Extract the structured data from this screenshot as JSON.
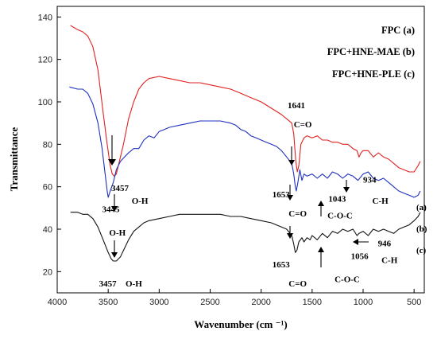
{
  "chart_data": {
    "type": "line",
    "xlabel": "Wavenumber (cm ⁻¹)",
    "ylabel": "Transmittance",
    "xlim": [
      4000,
      400
    ],
    "ylim": [
      10,
      145
    ],
    "xticks": [
      4000,
      3500,
      3000,
      2500,
      2000,
      1500,
      1000,
      500
    ],
    "yticks": [
      20,
      40,
      60,
      80,
      100,
      120,
      140
    ],
    "grid": false,
    "legend": {
      "placement": "top-right",
      "entries": [
        "FPC (a)",
        "FPC+HNE-MAE (b)",
        "FPC+HNE-PLE  (c)"
      ]
    },
    "series": [
      {
        "tag": "(a)",
        "color": "#e02020",
        "points": [
          [
            3870,
            136
          ],
          [
            3800,
            134
          ],
          [
            3750,
            133
          ],
          [
            3700,
            131
          ],
          [
            3650,
            126
          ],
          [
            3600,
            115
          ],
          [
            3550,
            95
          ],
          [
            3510,
            80
          ],
          [
            3480,
            70
          ],
          [
            3460,
            66
          ],
          [
            3440,
            65
          ],
          [
            3420,
            66
          ],
          [
            3400,
            70
          ],
          [
            3350,
            80
          ],
          [
            3300,
            92
          ],
          [
            3250,
            100
          ],
          [
            3200,
            106
          ],
          [
            3150,
            109
          ],
          [
            3100,
            111
          ],
          [
            3000,
            112
          ],
          [
            2900,
            111
          ],
          [
            2800,
            110
          ],
          [
            2700,
            109
          ],
          [
            2600,
            109
          ],
          [
            2500,
            108
          ],
          [
            2400,
            107
          ],
          [
            2300,
            106
          ],
          [
            2200,
            104
          ],
          [
            2100,
            102
          ],
          [
            2000,
            100
          ],
          [
            1900,
            97
          ],
          [
            1800,
            94
          ],
          [
            1750,
            92
          ],
          [
            1700,
            90
          ],
          [
            1680,
            85
          ],
          [
            1660,
            72
          ],
          [
            1645,
            67
          ],
          [
            1630,
            70
          ],
          [
            1610,
            80
          ],
          [
            1580,
            83
          ],
          [
            1550,
            84
          ],
          [
            1500,
            83
          ],
          [
            1450,
            84
          ],
          [
            1400,
            82
          ],
          [
            1350,
            82
          ],
          [
            1300,
            81
          ],
          [
            1250,
            81
          ],
          [
            1200,
            80
          ],
          [
            1150,
            80
          ],
          [
            1100,
            78
          ],
          [
            1060,
            77
          ],
          [
            1040,
            74
          ],
          [
            1020,
            76
          ],
          [
            1000,
            77
          ],
          [
            950,
            77
          ],
          [
            900,
            74
          ],
          [
            850,
            76
          ],
          [
            800,
            74
          ],
          [
            750,
            73
          ],
          [
            700,
            71
          ],
          [
            650,
            69
          ],
          [
            600,
            68
          ],
          [
            550,
            67
          ],
          [
            500,
            67
          ],
          [
            460,
            70
          ],
          [
            440,
            72
          ]
        ]
      },
      {
        "tag": "(b)",
        "color": "#1c2fc0",
        "points": [
          [
            3880,
            107
          ],
          [
            3800,
            106
          ],
          [
            3750,
            106
          ],
          [
            3700,
            104
          ],
          [
            3650,
            99
          ],
          [
            3600,
            90
          ],
          [
            3560,
            78
          ],
          [
            3530,
            66
          ],
          [
            3510,
            58
          ],
          [
            3500,
            55
          ],
          [
            3480,
            58
          ],
          [
            3450,
            62
          ],
          [
            3420,
            68
          ],
          [
            3380,
            72
          ],
          [
            3340,
            74
          ],
          [
            3300,
            76
          ],
          [
            3250,
            78
          ],
          [
            3200,
            78
          ],
          [
            3150,
            82
          ],
          [
            3100,
            84
          ],
          [
            3050,
            83
          ],
          [
            3000,
            86
          ],
          [
            2950,
            87
          ],
          [
            2900,
            88
          ],
          [
            2800,
            89
          ],
          [
            2700,
            90
          ],
          [
            2600,
            91
          ],
          [
            2500,
            91
          ],
          [
            2400,
            91
          ],
          [
            2300,
            90
          ],
          [
            2250,
            89
          ],
          [
            2200,
            87
          ],
          [
            2150,
            86
          ],
          [
            2100,
            84
          ],
          [
            2050,
            83
          ],
          [
            2000,
            82
          ],
          [
            1950,
            81
          ],
          [
            1900,
            80
          ],
          [
            1850,
            79
          ],
          [
            1800,
            77
          ],
          [
            1750,
            74
          ],
          [
            1700,
            71
          ],
          [
            1680,
            66
          ],
          [
            1665,
            60
          ],
          [
            1655,
            58
          ],
          [
            1640,
            62
          ],
          [
            1620,
            68
          ],
          [
            1600,
            63
          ],
          [
            1580,
            66
          ],
          [
            1550,
            65
          ],
          [
            1500,
            66
          ],
          [
            1450,
            64
          ],
          [
            1400,
            66
          ],
          [
            1350,
            64
          ],
          [
            1300,
            67
          ],
          [
            1250,
            66
          ],
          [
            1200,
            64
          ],
          [
            1150,
            66
          ],
          [
            1100,
            65
          ],
          [
            1050,
            63
          ],
          [
            1000,
            66
          ],
          [
            950,
            67
          ],
          [
            900,
            64
          ],
          [
            850,
            63
          ],
          [
            800,
            64
          ],
          [
            750,
            62
          ],
          [
            700,
            60
          ],
          [
            650,
            58
          ],
          [
            600,
            57
          ],
          [
            550,
            56
          ],
          [
            500,
            55
          ],
          [
            460,
            56
          ],
          [
            440,
            58
          ]
        ]
      },
      {
        "tag": "(c)",
        "color": "#111111",
        "points": [
          [
            3870,
            48
          ],
          [
            3800,
            48
          ],
          [
            3750,
            47
          ],
          [
            3700,
            47
          ],
          [
            3650,
            45
          ],
          [
            3600,
            41
          ],
          [
            3550,
            35
          ],
          [
            3500,
            29
          ],
          [
            3470,
            26
          ],
          [
            3450,
            25
          ],
          [
            3420,
            25
          ],
          [
            3380,
            27
          ],
          [
            3340,
            31
          ],
          [
            3300,
            35
          ],
          [
            3250,
            39
          ],
          [
            3200,
            41
          ],
          [
            3150,
            43
          ],
          [
            3100,
            44
          ],
          [
            3000,
            45
          ],
          [
            2900,
            46
          ],
          [
            2800,
            47
          ],
          [
            2700,
            47
          ],
          [
            2600,
            47
          ],
          [
            2500,
            47
          ],
          [
            2400,
            47
          ],
          [
            2300,
            46
          ],
          [
            2200,
            46
          ],
          [
            2100,
            45
          ],
          [
            2000,
            44
          ],
          [
            1900,
            43
          ],
          [
            1800,
            41
          ],
          [
            1750,
            40
          ],
          [
            1700,
            37
          ],
          [
            1680,
            33
          ],
          [
            1665,
            29
          ],
          [
            1650,
            30
          ],
          [
            1630,
            34
          ],
          [
            1600,
            36
          ],
          [
            1580,
            34
          ],
          [
            1550,
            36
          ],
          [
            1520,
            35
          ],
          [
            1500,
            37
          ],
          [
            1450,
            35
          ],
          [
            1400,
            38
          ],
          [
            1350,
            36
          ],
          [
            1300,
            39
          ],
          [
            1250,
            38
          ],
          [
            1200,
            40
          ],
          [
            1150,
            39
          ],
          [
            1100,
            40
          ],
          [
            1060,
            37
          ],
          [
            1040,
            38
          ],
          [
            1000,
            39
          ],
          [
            950,
            37
          ],
          [
            900,
            40
          ],
          [
            850,
            39
          ],
          [
            800,
            40
          ],
          [
            750,
            39
          ],
          [
            700,
            38
          ],
          [
            650,
            40
          ],
          [
            600,
            41
          ],
          [
            550,
            42
          ],
          [
            500,
            44
          ],
          [
            460,
            46
          ],
          [
            440,
            48
          ]
        ]
      }
    ],
    "annotations": [
      {
        "text": "3457",
        "x": 3470,
        "y": 58
      },
      {
        "text": "O-H",
        "x": 3270,
        "y": 52
      },
      {
        "text": "3445",
        "x": 3560,
        "y": 48
      },
      {
        "text": "O-H",
        "x": 3490,
        "y": 37
      },
      {
        "text": "3457",
        "x": 3590,
        "y": 13
      },
      {
        "text": "O-H",
        "x": 3330,
        "y": 13
      },
      {
        "text": "1641",
        "x": 1740,
        "y": 97
      },
      {
        "text": "C=O",
        "x": 1680,
        "y": 88
      },
      {
        "text": "1653",
        "x": 1890,
        "y": 55
      },
      {
        "text": "C=O",
        "x": 1730,
        "y": 46
      },
      {
        "text": "1043",
        "x": 1340,
        "y": 53
      },
      {
        "text": "C-O-C",
        "x": 1350,
        "y": 45
      },
      {
        "text": "934",
        "x": 1000,
        "y": 62
      },
      {
        "text": "C-H",
        "x": 910,
        "y": 52
      },
      {
        "text": "946",
        "x": 855,
        "y": 32
      },
      {
        "text": "C-H",
        "x": 820,
        "y": 24
      },
      {
        "text": "1653",
        "x": 1890,
        "y": 22
      },
      {
        "text": "C=O",
        "x": 1730,
        "y": 13
      },
      {
        "text": "1056",
        "x": 1120,
        "y": 26
      },
      {
        "text": "C-O-C",
        "x": 1280,
        "y": 15
      }
    ]
  }
}
